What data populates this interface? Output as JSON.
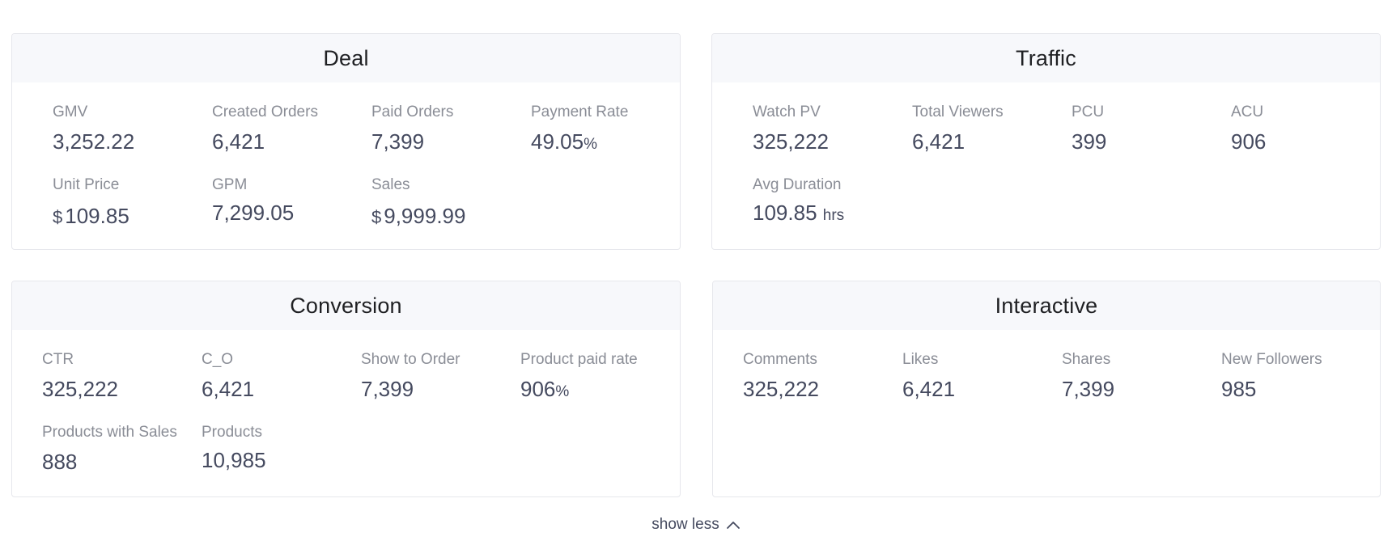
{
  "cards": {
    "deal": {
      "title": "Deal",
      "metrics": [
        {
          "label": "GMV",
          "value": "3,252.22"
        },
        {
          "label": "Created Orders",
          "value": "6,421"
        },
        {
          "label": "Paid Orders",
          "value": "7,399"
        },
        {
          "label": "Payment Rate",
          "value": "49.05",
          "unit": "%"
        },
        {
          "label": "Unit Price",
          "currency": "$",
          "value": "109.85"
        },
        {
          "label": "GPM",
          "value": "7,299.05"
        },
        {
          "label": "Sales",
          "currency": "$",
          "value": "9,999.99"
        }
      ]
    },
    "traffic": {
      "title": "Traffic",
      "metrics": [
        {
          "label": "Watch PV",
          "value": "325,222"
        },
        {
          "label": "Total Viewers",
          "value": "6,421"
        },
        {
          "label": "PCU",
          "value": "399"
        },
        {
          "label": "ACU",
          "value": "906"
        },
        {
          "label": "Avg Duration",
          "value": "109.85",
          "unit": "hrs"
        }
      ]
    },
    "conversion": {
      "title": "Conversion",
      "metrics": [
        {
          "label": "CTR",
          "value": "325,222"
        },
        {
          "label": "C_O",
          "value": "6,421"
        },
        {
          "label": "Show to Order",
          "value": "7,399"
        },
        {
          "label": "Product paid rate",
          "value": "906",
          "unit": "%"
        },
        {
          "label": "Products with Sales",
          "value": "888"
        },
        {
          "label": "Products",
          "value": "10,985"
        }
      ]
    },
    "interactive": {
      "title": "Interactive",
      "metrics": [
        {
          "label": "Comments",
          "value": "325,222"
        },
        {
          "label": "Likes",
          "value": "6,421"
        },
        {
          "label": "Shares",
          "value": "7,399"
        },
        {
          "label": "New Followers",
          "value": "985"
        }
      ]
    }
  },
  "footer": {
    "toggle_label": "show less",
    "toggle_icon": "chevron-up-icon"
  }
}
